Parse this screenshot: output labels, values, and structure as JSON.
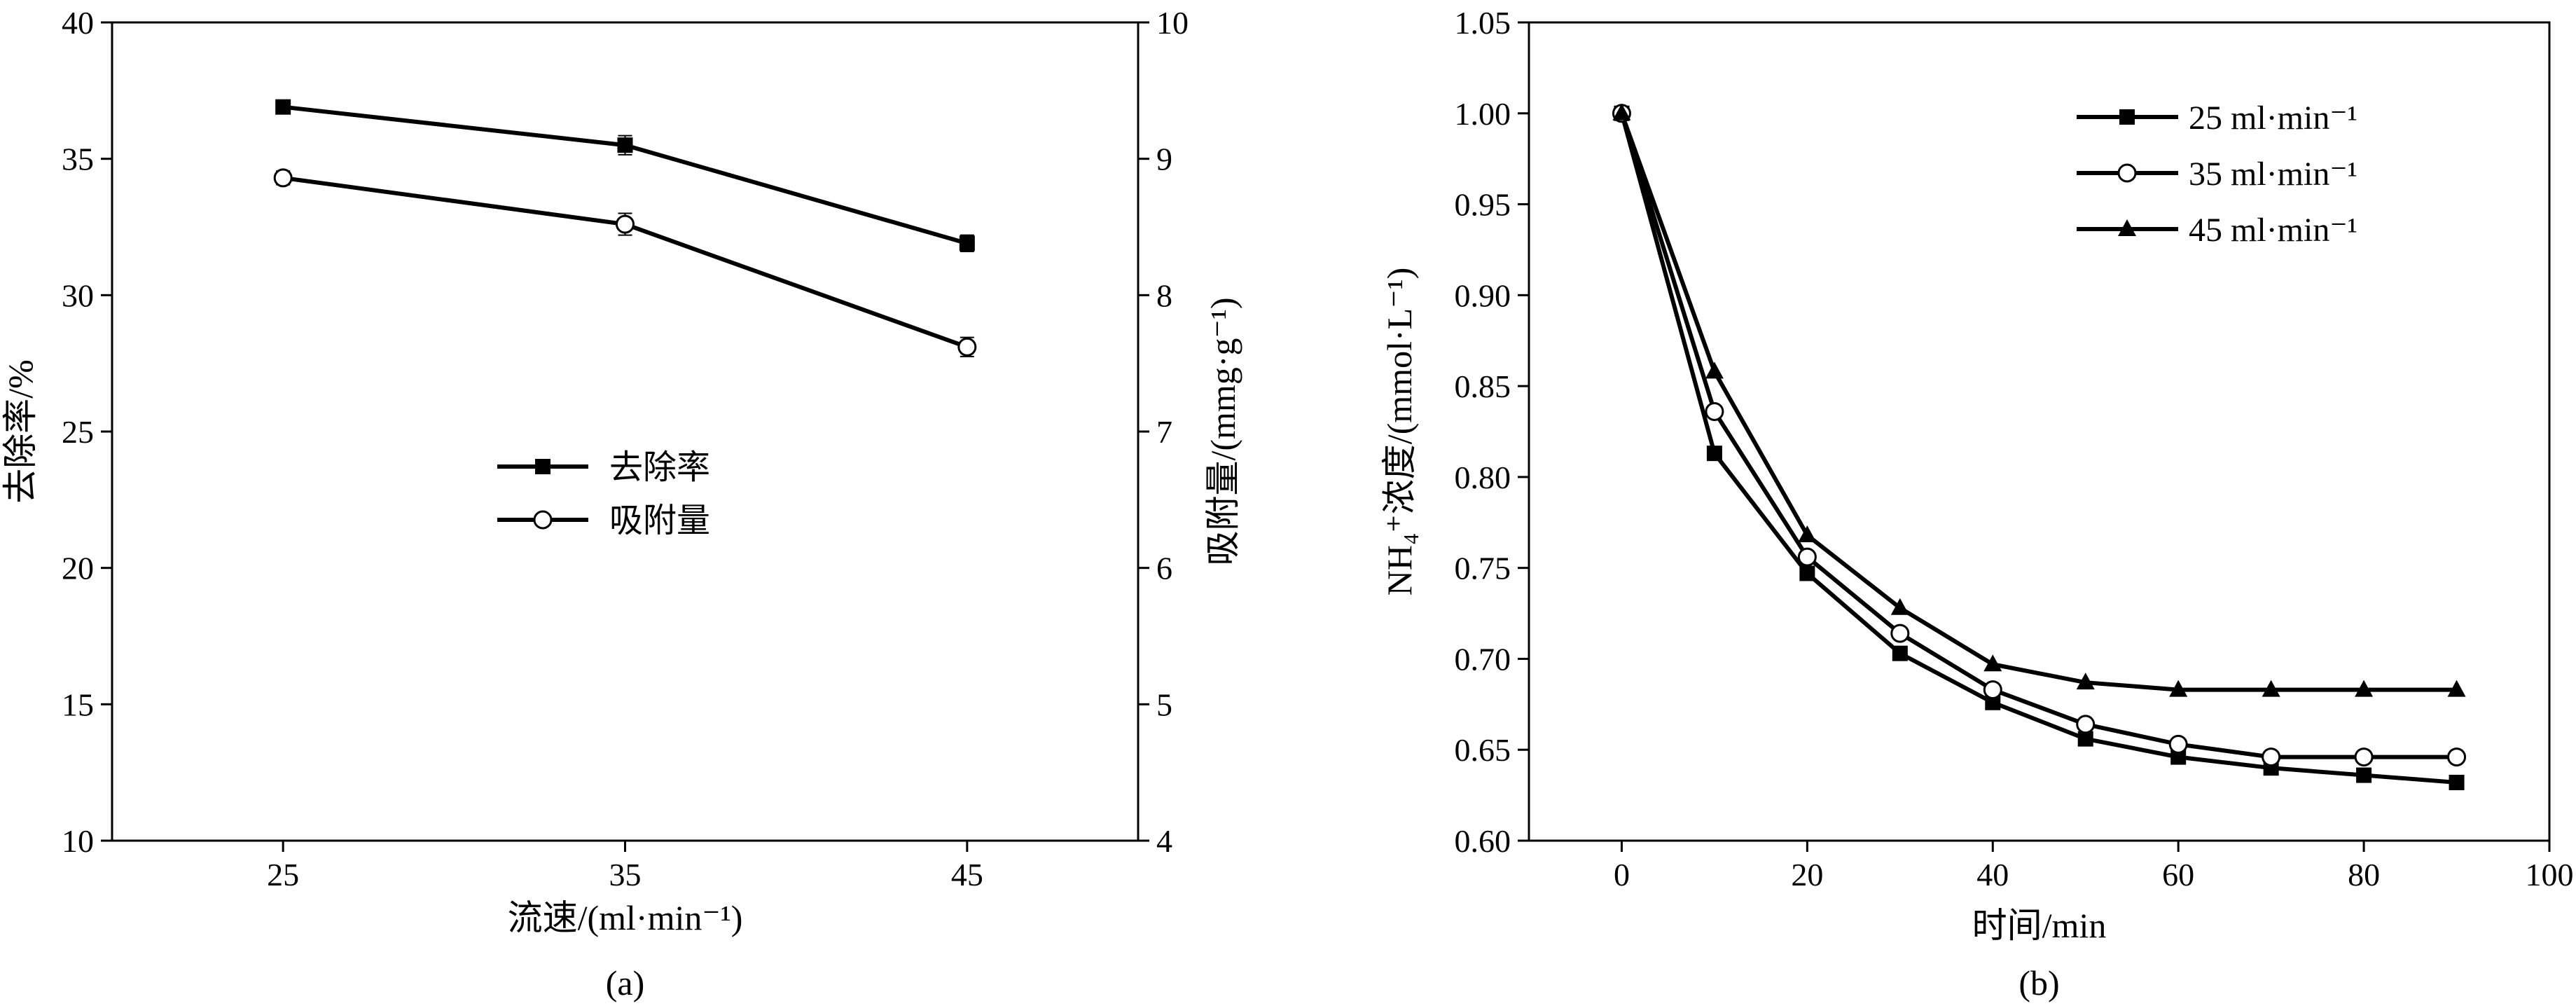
{
  "chart_data": [
    {
      "panel_label": "(a)",
      "type": "line",
      "x": [
        25,
        35,
        45
      ],
      "xlim": [
        20,
        50
      ],
      "xticks": [
        "25",
        "35",
        "45"
      ],
      "xlabel": "流速/(ml·min⁻¹)",
      "ylabel_left": "去除率/%",
      "ylim_left": [
        10,
        40
      ],
      "yticks_left": [
        "10",
        "15",
        "20",
        "25",
        "30",
        "35",
        "40"
      ],
      "ylabel_right": "吸附量/(mmg·g⁻¹)",
      "ylim_right": [
        4,
        10
      ],
      "yticks_right": [
        "4",
        "5",
        "6",
        "7",
        "8",
        "9",
        "10"
      ],
      "series": [
        {
          "name": "去除率",
          "marker": "square-filled",
          "axis": "left",
          "values": [
            36.9,
            35.5,
            31.9
          ],
          "errors": [
            0.25,
            0.35,
            0.3
          ]
        },
        {
          "name": "吸附量",
          "marker": "circle-open",
          "axis": "left",
          "values": [
            34.3,
            32.6,
            28.1
          ],
          "errors": [
            0.25,
            0.4,
            0.35
          ]
        }
      ],
      "legend": "center",
      "grid": false
    },
    {
      "panel_label": "(b)",
      "type": "line",
      "x": [
        0,
        10,
        20,
        30,
        40,
        50,
        60,
        70,
        80,
        90
      ],
      "xlim": [
        -10,
        100
      ],
      "xticks": [
        "0",
        "20",
        "40",
        "60",
        "80",
        "100"
      ],
      "xlabel": "时间/min",
      "ylabel": "NH₄⁺浓度/(mmol·L⁻¹)",
      "ylim": [
        0.6,
        1.05
      ],
      "yticks": [
        "0.60",
        "0.65",
        "0.70",
        "0.75",
        "0.80",
        "0.85",
        "0.90",
        "0.95",
        "1.00",
        "1.05"
      ],
      "series": [
        {
          "name": "25 ml·min⁻¹",
          "marker": "square-filled",
          "values": [
            1.0,
            0.813,
            0.747,
            0.703,
            0.676,
            0.656,
            0.646,
            0.64,
            0.636,
            0.632
          ]
        },
        {
          "name": "35 ml·min⁻¹",
          "marker": "circle-open",
          "values": [
            1.0,
            0.836,
            0.756,
            0.714,
            0.683,
            0.664,
            0.653,
            0.646,
            0.646,
            0.646
          ]
        },
        {
          "name": "45 ml·min⁻¹",
          "marker": "triangle-filled",
          "values": [
            1.0,
            0.858,
            0.768,
            0.728,
            0.697,
            0.687,
            0.683,
            0.683,
            0.683,
            0.683
          ]
        }
      ],
      "legend": "top-right",
      "grid": false
    }
  ]
}
